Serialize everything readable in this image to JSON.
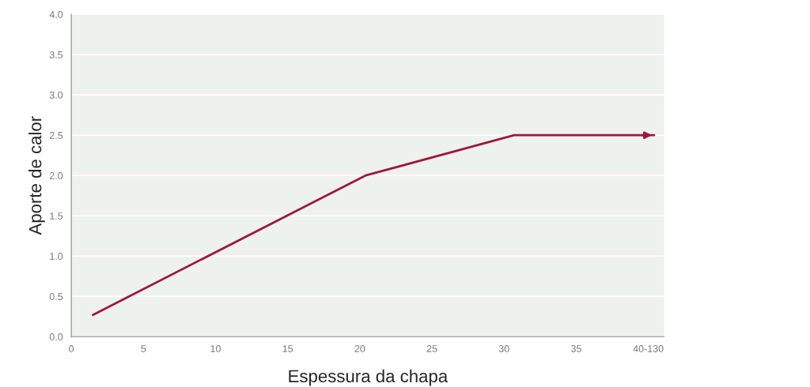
{
  "chart_data": {
    "type": "line",
    "xlabel": "Espessura da chapa",
    "ylabel": "Aporte de calor",
    "x": [
      1.5,
      20.4,
      30.7,
      40.4
    ],
    "series": [
      {
        "color": "#a0173e",
        "values": [
          0.27,
          2.0,
          2.5,
          2.5
        ]
      }
    ],
    "xlim": [
      0,
      41.1
    ],
    "xticks": [
      0,
      5,
      10,
      15,
      20,
      25,
      30,
      35,
      {
        "value": 40,
        "label": "40-130"
      }
    ],
    "ylim": [
      0,
      4.0
    ],
    "yticks": [
      {
        "value": 0,
        "label": "0.0"
      },
      0.5,
      {
        "value": 1,
        "label": "1.0"
      },
      1.5,
      {
        "value": 2,
        "label": "2.0"
      },
      2.5,
      {
        "value": 3,
        "label": "3.0"
      },
      3.5,
      {
        "value": 4,
        "label": "4.0"
      }
    ],
    "grid": "y",
    "marker": "none",
    "line_style": "solid"
  }
}
